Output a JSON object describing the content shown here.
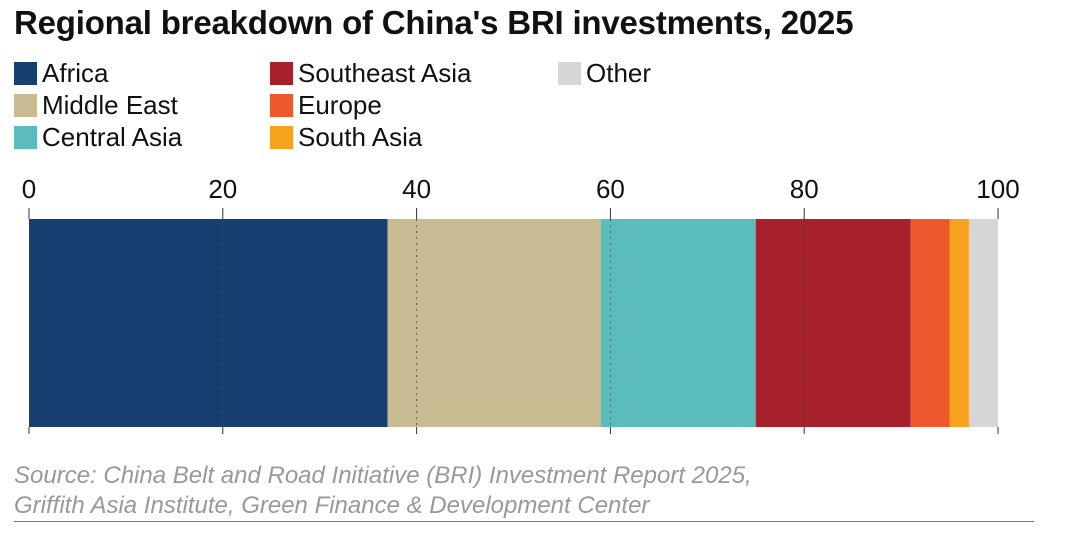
{
  "chart_data": {
    "type": "bar",
    "orientation": "horizontal-stacked",
    "title": "Regional breakdown of China's BRI investments, 2025",
    "xlim": [
      0,
      100
    ],
    "ticks": [
      0,
      20,
      40,
      60,
      80,
      100
    ],
    "tick_labels": [
      "0",
      "20",
      "40",
      "60",
      "80",
      "100"
    ],
    "grid": "vertical dotted",
    "legend_position": "top-left",
    "series": [
      {
        "name": "Africa",
        "value": 37,
        "color": "#173f6f"
      },
      {
        "name": "Middle East",
        "value": 22,
        "color": "#c8bb92"
      },
      {
        "name": "Central Asia",
        "value": 16,
        "color": "#5bbcbc"
      },
      {
        "name": "Southeast Asia",
        "value": 16,
        "color": "#a7212c"
      },
      {
        "name": "Europe",
        "value": 4,
        "color": "#ef572d"
      },
      {
        "name": "South Asia",
        "value": 2,
        "color": "#f6a21f"
      },
      {
        "name": "Other",
        "value": 3,
        "color": "#d6d6d6"
      }
    ]
  },
  "source": {
    "line1": "Source: China Belt and Road Initiative (BRI) Investment Report 2025,",
    "line2": "Griffith Asia Institute, Green Finance & Development Center"
  }
}
